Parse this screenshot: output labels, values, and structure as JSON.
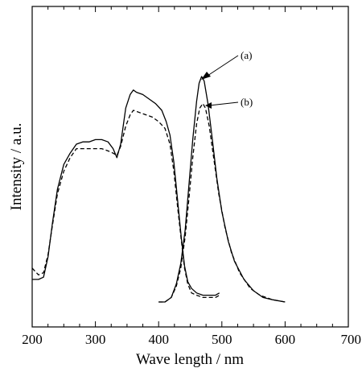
{
  "chart_data": {
    "type": "line",
    "title": "",
    "xlabel": "Wave length / nm",
    "ylabel": "Intensity / a.u.",
    "xlim": [
      200,
      700
    ],
    "ylim": [
      0,
      1
    ],
    "x_ticks": [
      "200",
      "300",
      "400",
      "500",
      "600",
      "700"
    ],
    "y_ticks_labeled": false,
    "grid": false,
    "legend": "none",
    "annotations": [
      "(a)",
      "(b)"
    ],
    "series": [
      {
        "name": "(a)",
        "style": "solid",
        "segments": [
          [
            [
              200,
              0.1
            ],
            [
              210,
              0.1
            ],
            [
              218,
              0.11
            ],
            [
              225,
              0.2
            ],
            [
              232,
              0.35
            ],
            [
              240,
              0.5
            ],
            [
              250,
              0.61
            ],
            [
              260,
              0.66
            ],
            [
              270,
              0.7
            ],
            [
              280,
              0.71
            ],
            [
              290,
              0.71
            ],
            [
              300,
              0.72
            ],
            [
              310,
              0.72
            ],
            [
              320,
              0.71
            ],
            [
              328,
              0.68
            ],
            [
              334,
              0.64
            ],
            [
              340,
              0.7
            ],
            [
              348,
              0.86
            ],
            [
              355,
              0.92
            ],
            [
              360,
              0.94
            ],
            [
              365,
              0.93
            ],
            [
              375,
              0.92
            ],
            [
              385,
              0.9
            ],
            [
              395,
              0.88
            ],
            [
              405,
              0.85
            ],
            [
              412,
              0.8
            ],
            [
              418,
              0.74
            ],
            [
              424,
              0.62
            ],
            [
              430,
              0.45
            ],
            [
              436,
              0.28
            ],
            [
              441,
              0.16
            ],
            [
              446,
              0.09
            ],
            [
              452,
              0.06
            ],
            [
              460,
              0.04
            ],
            [
              470,
              0.03
            ],
            [
              480,
              0.03
            ],
            [
              490,
              0.03
            ],
            [
              496,
              0.04
            ]
          ],
          [
            [
              400,
              0.0
            ],
            [
              410,
              0.0
            ],
            [
              420,
              0.02
            ],
            [
              428,
              0.08
            ],
            [
              435,
              0.17
            ],
            [
              442,
              0.32
            ],
            [
              448,
              0.52
            ],
            [
              454,
              0.72
            ],
            [
              460,
              0.89
            ],
            [
              464,
              0.97
            ],
            [
              468,
              1.0
            ],
            [
              472,
              0.98
            ],
            [
              478,
              0.88
            ],
            [
              485,
              0.72
            ],
            [
              492,
              0.55
            ],
            [
              500,
              0.4
            ],
            [
              510,
              0.27
            ],
            [
              520,
              0.18
            ],
            [
              535,
              0.1
            ],
            [
              550,
              0.05
            ],
            [
              565,
              0.02
            ],
            [
              580,
              0.01
            ],
            [
              600,
              0.0
            ]
          ]
        ]
      },
      {
        "name": "(b)",
        "style": "dashed",
        "segments": [
          [
            [
              200,
              0.15
            ],
            [
              210,
              0.12
            ],
            [
              218,
              0.13
            ],
            [
              225,
              0.21
            ],
            [
              232,
              0.34
            ],
            [
              240,
              0.48
            ],
            [
              250,
              0.58
            ],
            [
              260,
              0.64
            ],
            [
              270,
              0.68
            ],
            [
              280,
              0.68
            ],
            [
              290,
              0.68
            ],
            [
              300,
              0.68
            ],
            [
              310,
              0.68
            ],
            [
              320,
              0.67
            ],
            [
              328,
              0.66
            ],
            [
              334,
              0.65
            ],
            [
              340,
              0.69
            ],
            [
              348,
              0.78
            ],
            [
              355,
              0.83
            ],
            [
              360,
              0.85
            ],
            [
              370,
              0.84
            ],
            [
              380,
              0.83
            ],
            [
              390,
              0.82
            ],
            [
              400,
              0.8
            ],
            [
              410,
              0.77
            ],
            [
              418,
              0.7
            ],
            [
              424,
              0.58
            ],
            [
              430,
              0.42
            ],
            [
              436,
              0.27
            ],
            [
              441,
              0.15
            ],
            [
              446,
              0.08
            ],
            [
              452,
              0.04
            ],
            [
              460,
              0.03
            ],
            [
              470,
              0.02
            ],
            [
              480,
              0.02
            ],
            [
              490,
              0.02
            ],
            [
              496,
              0.03
            ]
          ],
          [
            [
              400,
              0.0
            ],
            [
              410,
              0.0
            ],
            [
              420,
              0.02
            ],
            [
              428,
              0.07
            ],
            [
              435,
              0.15
            ],
            [
              442,
              0.29
            ],
            [
              448,
              0.46
            ],
            [
              454,
              0.64
            ],
            [
              460,
              0.79
            ],
            [
              465,
              0.86
            ],
            [
              470,
              0.88
            ],
            [
              474,
              0.86
            ],
            [
              480,
              0.78
            ],
            [
              487,
              0.64
            ],
            [
              495,
              0.48
            ],
            [
              505,
              0.33
            ],
            [
              515,
              0.22
            ],
            [
              528,
              0.13
            ],
            [
              545,
              0.06
            ],
            [
              560,
              0.03
            ],
            [
              580,
              0.01
            ],
            [
              600,
              0.0
            ]
          ]
        ]
      }
    ]
  }
}
